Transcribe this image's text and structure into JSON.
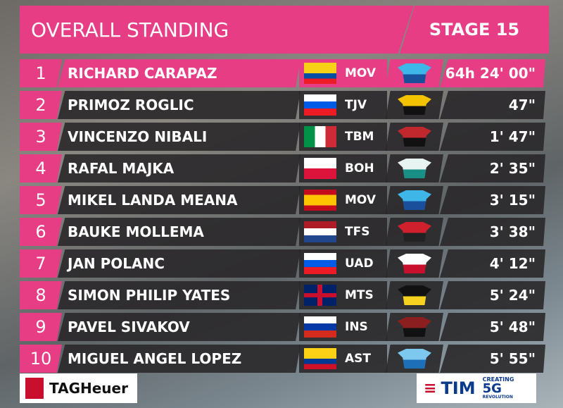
{
  "header": {
    "title": "OVERALL STANDING",
    "stage": "STAGE 15"
  },
  "table": {
    "rows": [
      {
        "rank": 1,
        "name": "RICHARD CARAPAZ",
        "team": "MOV",
        "time": "64h 24' 00\""
      },
      {
        "rank": 2,
        "name": "PRIMOZ ROGLIC",
        "team": "TJV",
        "time": "47\""
      },
      {
        "rank": 3,
        "name": "VINCENZO NIBALI",
        "team": "TBM",
        "time": "1' 47\""
      },
      {
        "rank": 4,
        "name": "RAFAL MAJKA",
        "team": "BOH",
        "time": "2' 35\""
      },
      {
        "rank": 5,
        "name": "MIKEL LANDA MEANA",
        "team": "MOV",
        "time": "3' 15\""
      },
      {
        "rank": 6,
        "name": "BAUKE MOLLEMA",
        "team": "TFS",
        "time": "3' 38\""
      },
      {
        "rank": 7,
        "name": "JAN POLANC",
        "team": "UAD",
        "time": "4' 12\""
      },
      {
        "rank": 8,
        "name": "SIMON PHILIP YATES",
        "team": "MTS",
        "time": "5' 24\""
      },
      {
        "rank": 9,
        "name": "PAVEL SIVAKOV",
        "team": "INS",
        "time": "5' 48\""
      },
      {
        "rank": 10,
        "name": "MIGUEL ANGEL LOPEZ",
        "team": "AST",
        "time": "5' 55\""
      }
    ]
  },
  "sponsors": {
    "left": "TAGHeuer",
    "right": "TIM",
    "tagline": "CREATING",
    "tech": "5G",
    "sub": "REVOLUTION"
  }
}
